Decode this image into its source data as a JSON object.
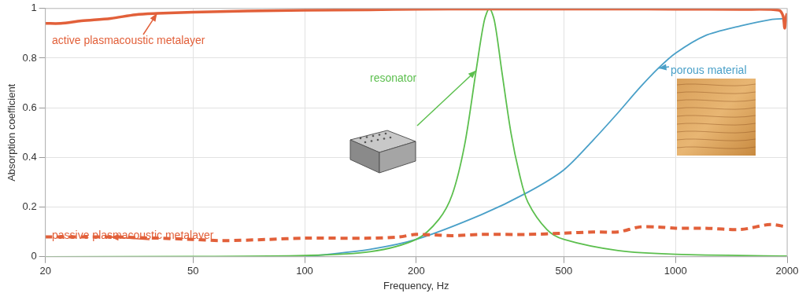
{
  "chart_data": {
    "type": "line",
    "x_label": "Frequency, Hz",
    "y_label": "Absorption coefficient",
    "log": "x",
    "grid": true,
    "xlim": [
      20,
      2000
    ],
    "xticks": [
      20,
      50,
      100,
      200,
      500,
      1000,
      2000
    ],
    "ylim": [
      0,
      1
    ],
    "yticks": [
      0,
      0.2,
      0.4,
      0.6,
      0.8,
      1
    ],
    "series": [
      {
        "name": "active plasmacoustic metalayer",
        "color": "#e2603a",
        "line_style": "solid",
        "x": [
          20,
          22,
          25,
          30,
          35,
          40,
          50,
          70,
          100,
          150,
          200,
          300,
          500,
          700,
          1000,
          1500,
          1900,
          1950,
          1970,
          1990,
          2000
        ],
        "values": [
          0.94,
          0.94,
          0.95,
          0.96,
          0.975,
          0.98,
          0.985,
          0.99,
          0.993,
          0.995,
          0.997,
          0.998,
          0.998,
          0.998,
          0.997,
          0.996,
          0.993,
          0.97,
          0.92,
          0.97,
          0.98
        ]
      },
      {
        "name": "passive plasmacoustic metalayer",
        "color": "#e2603a",
        "line_style": "dashed",
        "x": [
          20,
          30,
          40,
          50,
          60,
          80,
          100,
          150,
          180,
          200,
          250,
          300,
          400,
          500,
          600,
          700,
          800,
          900,
          1000,
          1200,
          1500,
          1800,
          2000
        ],
        "values": [
          0.08,
          0.08,
          0.075,
          0.07,
          0.065,
          0.07,
          0.075,
          0.075,
          0.08,
          0.09,
          0.085,
          0.09,
          0.09,
          0.095,
          0.1,
          0.1,
          0.12,
          0.12,
          0.115,
          0.115,
          0.11,
          0.13,
          0.12
        ]
      },
      {
        "name": "resonator",
        "color": "#5cbf4e",
        "line_style": "solid",
        "x": [
          20,
          50,
          100,
          150,
          200,
          230,
          250,
          270,
          290,
          305,
          315,
          325,
          340,
          360,
          380,
          400,
          450,
          500,
          700,
          1000,
          2000
        ],
        "values": [
          0,
          0.001,
          0.005,
          0.02,
          0.07,
          0.15,
          0.25,
          0.45,
          0.75,
          0.95,
          1,
          0.95,
          0.75,
          0.5,
          0.33,
          0.22,
          0.11,
          0.07,
          0.025,
          0.01,
          0.003
        ]
      },
      {
        "name": "porous material",
        "color": "#4aa0c8",
        "line_style": "solid",
        "x": [
          100,
          150,
          200,
          300,
          400,
          500,
          600,
          700,
          800,
          900,
          1000,
          1200,
          1500,
          1800,
          2000
        ],
        "values": [
          0,
          0.03,
          0.07,
          0.17,
          0.26,
          0.35,
          0.47,
          0.58,
          0.68,
          0.76,
          0.82,
          0.89,
          0.93,
          0.955,
          0.96
        ]
      }
    ]
  }
}
